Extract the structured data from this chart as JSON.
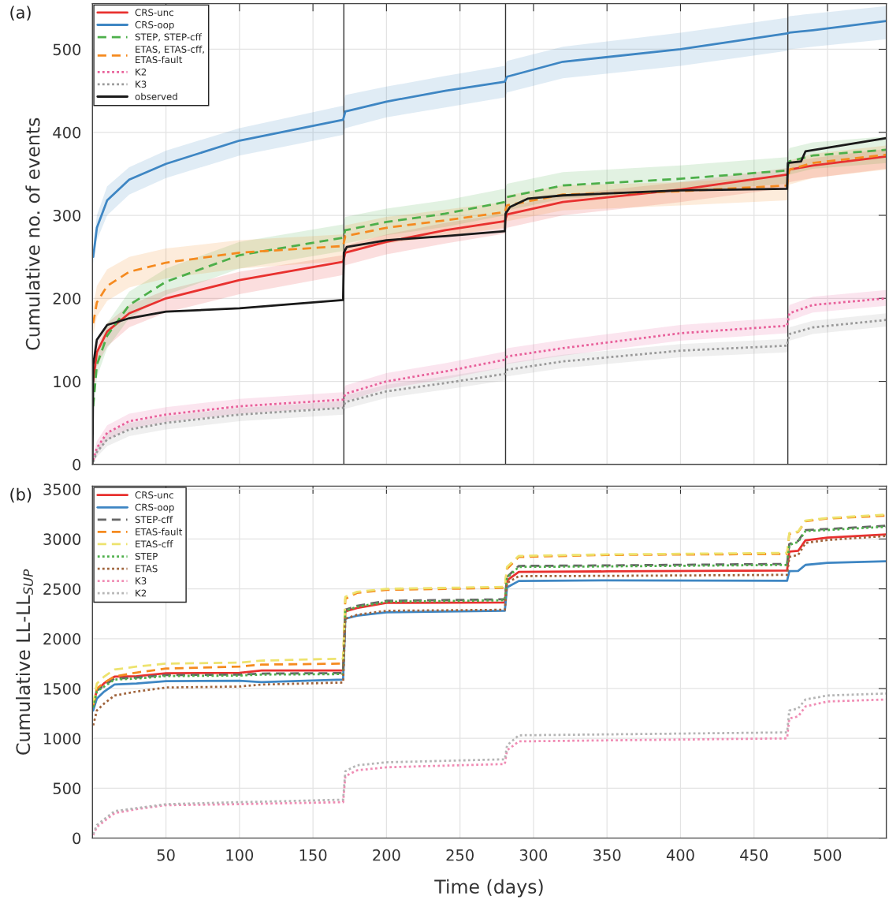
{
  "chart_data": [
    {
      "type": "line",
      "ylabel": "Cumulative no. of events",
      "annotations": [
        "(a)"
      ],
      "legend": "top left",
      "grid": true,
      "tick_labels": "y",
      "xlim": [
        0,
        540
      ],
      "xticks": [
        50,
        100,
        150,
        200,
        250,
        300,
        350,
        400,
        450,
        500
      ],
      "ylim": [
        0,
        555
      ],
      "yticks": [
        0,
        100,
        200,
        300,
        400,
        500
      ],
      "x": [
        0.5,
        3,
        10,
        25,
        50,
        100,
        170.5,
        172,
        200,
        240,
        280.5,
        282,
        320,
        400,
        472.5,
        474,
        490,
        540
      ],
      "ref_lines": [
        {
          "axis": "x",
          "value": 171,
          "color": "#333333"
        },
        {
          "axis": "x",
          "value": 281,
          "color": "#333333"
        },
        {
          "axis": "x",
          "value": 473,
          "color": "#333333"
        }
      ],
      "series": [
        {
          "name": "CRS-unc",
          "color": "#e8312f",
          "line_style": "solid",
          "values": [
            100,
            135,
            160,
            182,
            200,
            222,
            244,
            255,
            268,
            282,
            293,
            301,
            316,
            331,
            349,
            355,
            360,
            371
          ],
          "lower": [
            85,
            118,
            142,
            165,
            183,
            205,
            228,
            240,
            253,
            266,
            278,
            285,
            300,
            316,
            333,
            340,
            345,
            356
          ],
          "upper": [
            108,
            145,
            170,
            192,
            210,
            232,
            252,
            264,
            277,
            291,
            302,
            310,
            325,
            340,
            357,
            364,
            369,
            380
          ]
        },
        {
          "name": "CRS-oop",
          "color": "#3e86c3",
          "line_style": "solid",
          "values": [
            250,
            285,
            318,
            343,
            362,
            390,
            415,
            425,
            437,
            450,
            461,
            467,
            485,
            500,
            519,
            520,
            523,
            534
          ],
          "lower": [
            240,
            270,
            300,
            325,
            345,
            372,
            397,
            405,
            418,
            430,
            442,
            448,
            465,
            480,
            498,
            500,
            503,
            512
          ],
          "upper": [
            262,
            300,
            335,
            358,
            378,
            405,
            432,
            445,
            455,
            468,
            480,
            486,
            503,
            520,
            538,
            540,
            543,
            552
          ]
        },
        {
          "name": "STEP, STEP-cff",
          "color": "#4daf4a",
          "line_style": "dashed",
          "values": [
            70,
            120,
            155,
            192,
            220,
            252,
            273,
            282,
            292,
            302,
            316,
            322,
            336,
            344,
            354,
            365,
            372,
            379
          ],
          "lower": [
            60,
            105,
            140,
            176,
            204,
            236,
            257,
            266,
            276,
            286,
            300,
            306,
            320,
            328,
            338,
            349,
            356,
            363
          ],
          "upper": [
            82,
            135,
            170,
            208,
            236,
            268,
            289,
            298,
            308,
            318,
            332,
            338,
            352,
            360,
            370,
            381,
            388,
            395
          ]
        },
        {
          "name": "ETAS, ETAS-cff,\nETAS-fault",
          "color": "#f58a1f",
          "line_style": "dashed",
          "values": [
            170,
            195,
            215,
            232,
            243,
            255,
            263,
            275,
            285,
            294,
            304,
            312,
            325,
            329,
            336,
            355,
            363,
            373
          ],
          "lower": [
            155,
            178,
            197,
            213,
            224,
            236,
            245,
            256,
            266,
            275,
            285,
            293,
            306,
            312,
            318,
            337,
            345,
            355
          ],
          "upper": [
            190,
            215,
            235,
            250,
            260,
            270,
            277,
            288,
            298,
            307,
            316,
            324,
            336,
            340,
            347,
            366,
            374,
            384
          ]
        },
        {
          "name": "K2",
          "color": "#e8609a",
          "line_style": "dotted",
          "values": [
            5,
            20,
            38,
            52,
            60,
            70,
            78,
            85,
            100,
            112,
            126,
            130,
            140,
            158,
            167,
            182,
            192,
            200
          ],
          "lower": [
            2,
            12,
            29,
            43,
            51,
            61,
            69,
            76,
            91,
            103,
            117,
            121,
            131,
            149,
            158,
            173,
            183,
            191
          ],
          "upper": [
            10,
            28,
            47,
            61,
            69,
            79,
            87,
            95,
            110,
            122,
            136,
            140,
            150,
            168,
            177,
            192,
            202,
            210
          ]
        },
        {
          "name": "K3",
          "color": "#999999",
          "line_style": "dotted",
          "values": [
            3,
            15,
            30,
            42,
            50,
            60,
            68,
            75,
            88,
            98,
            109,
            114,
            124,
            137,
            143,
            157,
            165,
            174
          ],
          "lower": [
            1,
            9,
            22,
            34,
            42,
            52,
            60,
            67,
            80,
            90,
            101,
            106,
            116,
            129,
            135,
            149,
            157,
            166
          ],
          "upper": [
            7,
            21,
            38,
            50,
            58,
            68,
            76,
            83,
            96,
            106,
            117,
            122,
            132,
            145,
            151,
            165,
            173,
            182
          ]
        },
        {
          "name": "observed",
          "color": "#1a1a1a",
          "line_style": "solid",
          "x": [
            0,
            0.5,
            3,
            10,
            25,
            50,
            100,
            170.5,
            171,
            173,
            200,
            240,
            280.5,
            281,
            284,
            296,
            320,
            400,
            472.5,
            473,
            482,
            485,
            540
          ],
          "values": [
            0,
            120,
            150,
            168,
            176,
            184,
            188,
            198,
            255,
            262,
            270,
            275,
            281,
            302,
            310,
            320,
            324,
            330,
            332,
            363,
            365,
            377,
            393
          ]
        }
      ]
    },
    {
      "type": "line",
      "xlabel": "Time (days)",
      "ylabel": "Cumulative LL-LL$_{SUP}$",
      "annotations": [
        "(b)"
      ],
      "legend": "top left",
      "grid": true,
      "xlim": [
        0,
        540
      ],
      "xticks": [
        50,
        100,
        150,
        200,
        250,
        300,
        350,
        400,
        450,
        500
      ],
      "ylim": [
        0,
        3530
      ],
      "yticks": [
        0,
        500,
        1000,
        1500,
        2000,
        2500,
        3000,
        3500
      ],
      "x": [
        0.5,
        3,
        8,
        15,
        30,
        50,
        100,
        115,
        170.5,
        172,
        180,
        200,
        280.5,
        282,
        290,
        350,
        472.5,
        474,
        480,
        485,
        500,
        540
      ],
      "series": [
        {
          "name": "CRS-unc",
          "color": "#e8312f",
          "line_style": "solid",
          "values": [
            1340,
            1483,
            1554,
            1619,
            1624,
            1653,
            1658,
            1681,
            1681,
            2274,
            2308,
            2359,
            2364,
            2585,
            2670,
            2675,
            2684,
            2873,
            2881,
            2986,
            3014,
            3045
          ]
        },
        {
          "name": "CRS-oop",
          "color": "#3e86c3",
          "line_style": "solid",
          "values": [
            1280,
            1400,
            1470,
            1540,
            1550,
            1575,
            1578,
            1565,
            1590,
            2200,
            2230,
            2265,
            2280,
            2514,
            2579,
            2585,
            2580,
            2678,
            2680,
            2740,
            2760,
            2777
          ]
        },
        {
          "name": "STEP-cff",
          "color": "#666666",
          "line_style": "dashed",
          "values": [
            1320,
            1480,
            1530,
            1600,
            1610,
            1635,
            1640,
            1650,
            1655,
            2290,
            2330,
            2380,
            2395,
            2620,
            2730,
            2735,
            2750,
            2950,
            2980,
            3090,
            3100,
            3133
          ]
        },
        {
          "name": "ETAS-fault",
          "color": "#f58a1f",
          "line_style": "dashed",
          "values": [
            1330,
            1500,
            1560,
            1620,
            1660,
            1700,
            1720,
            1740,
            1750,
            2400,
            2460,
            2490,
            2510,
            2700,
            2820,
            2840,
            2850,
            3050,
            3070,
            3178,
            3206,
            3234
          ]
        },
        {
          "name": "ETAS-cff",
          "color": "#ede36e",
          "line_style": "dashed",
          "values": [
            1350,
            1550,
            1620,
            1690,
            1720,
            1750,
            1760,
            1780,
            1800,
            2420,
            2470,
            2500,
            2520,
            2720,
            2830,
            2845,
            2860,
            3060,
            3075,
            3185,
            3210,
            3245
          ]
        },
        {
          "name": "STEP",
          "color": "#4daf4a",
          "line_style": "dotted",
          "values": [
            1310,
            1470,
            1520,
            1590,
            1600,
            1625,
            1630,
            1640,
            1645,
            2280,
            2320,
            2370,
            2385,
            2610,
            2720,
            2725,
            2740,
            2940,
            2970,
            3080,
            3090,
            3123
          ]
        },
        {
          "name": "ETAS",
          "color": "#a0643c",
          "line_style": "dotted",
          "values": [
            1130,
            1280,
            1350,
            1430,
            1470,
            1510,
            1520,
            1540,
            1560,
            2200,
            2240,
            2280,
            2290,
            2560,
            2627,
            2630,
            2640,
            2820,
            2840,
            2960,
            2990,
            3030
          ]
        },
        {
          "name": "K3",
          "color": "#f08cb4",
          "line_style": "dotted",
          "values": [
            30,
            110,
            170,
            250,
            290,
            330,
            340,
            345,
            360,
            620,
            680,
            710,
            743,
            880,
            970,
            980,
            1000,
            1200,
            1220,
            1320,
            1370,
            1390
          ]
        },
        {
          "name": "K2",
          "color": "#b5b5b5",
          "line_style": "dotted",
          "values": [
            40,
            130,
            190,
            270,
            300,
            340,
            360,
            365,
            385,
            670,
            730,
            760,
            790,
            930,
            1031,
            1040,
            1060,
            1280,
            1300,
            1390,
            1430,
            1450
          ]
        }
      ]
    }
  ]
}
